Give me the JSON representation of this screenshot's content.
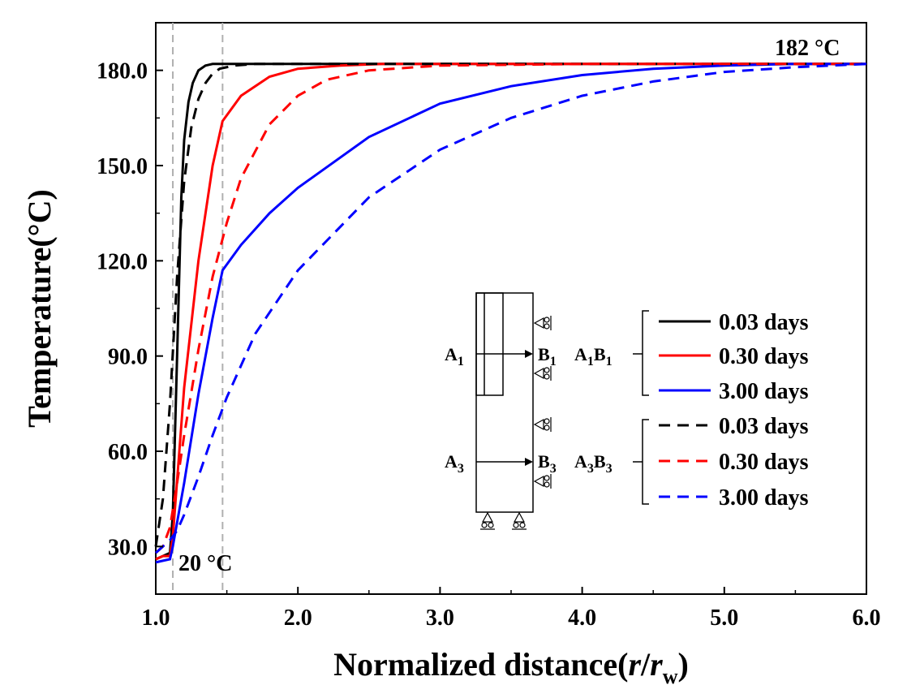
{
  "chart_data": {
    "type": "line",
    "xlabel": "Normalized distance(r/r_w)",
    "xlabel_parts": {
      "prefix": "Normalized distance(",
      "r": "r",
      "slash": "/",
      "rw": "r",
      "sub": "w",
      "suffix": ")"
    },
    "ylabel": "Temperature(°C)",
    "xlim": [
      1.0,
      6.0
    ],
    "ylim": [
      15,
      195
    ],
    "xticks": [
      1.0,
      2.0,
      3.0,
      4.0,
      5.0,
      6.0
    ],
    "xtick_labels": [
      "1.0",
      "2.0",
      "3.0",
      "4.0",
      "5.0",
      "6.0"
    ],
    "yticks": [
      30,
      60,
      90,
      120,
      150,
      180
    ],
    "ytick_labels": [
      "30.0",
      "60.0",
      "90.0",
      "120.0",
      "150.0",
      "180.0"
    ],
    "grid": false,
    "vlines": [
      1.12,
      1.47
    ],
    "annotations": [
      {
        "text": "182 °C",
        "x": 5.5,
        "y": 182
      },
      {
        "text": "20 °C",
        "x": 1.2,
        "y": 22
      }
    ],
    "series": [
      {
        "name": "0.03 days",
        "group": "A1B1",
        "color": "#000000",
        "dash": "solid",
        "x": [
          1.0,
          1.05,
          1.1,
          1.12,
          1.15,
          1.18,
          1.2,
          1.23,
          1.26,
          1.3,
          1.35,
          1.4,
          1.5,
          2.0,
          3.0,
          4.0,
          5.0,
          6.0
        ],
        "y": [
          26,
          27,
          28,
          40,
          90,
          140,
          158,
          170,
          176,
          180,
          181.5,
          182,
          182,
          182,
          182,
          182,
          182,
          182
        ]
      },
      {
        "name": "0.30 days",
        "group": "A1B1",
        "color": "#ff0000",
        "dash": "solid",
        "x": [
          1.0,
          1.05,
          1.1,
          1.12,
          1.2,
          1.3,
          1.4,
          1.47,
          1.6,
          1.8,
          2.0,
          2.3,
          2.6,
          3.0,
          4.0,
          5.0,
          6.0
        ],
        "y": [
          26,
          27,
          27,
          33,
          80,
          120,
          150,
          164,
          172,
          178,
          180.5,
          181.5,
          182,
          182,
          182,
          182,
          182
        ]
      },
      {
        "name": "3.00 days",
        "group": "A1B1",
        "color": "#0000ff",
        "dash": "solid",
        "x": [
          1.0,
          1.05,
          1.1,
          1.12,
          1.2,
          1.3,
          1.4,
          1.47,
          1.6,
          1.8,
          2.0,
          2.5,
          3.0,
          3.5,
          4.0,
          4.5,
          5.0,
          5.5,
          6.0
        ],
        "y": [
          25,
          25.5,
          26,
          30,
          50,
          78,
          102,
          117,
          125,
          135,
          143,
          159,
          169.5,
          175,
          178.5,
          180.5,
          181.5,
          182,
          182
        ]
      },
      {
        "name": "0.03 days",
        "group": "A3B3",
        "color": "#000000",
        "dash": "dashed",
        "x": [
          1.0,
          1.05,
          1.1,
          1.15,
          1.2,
          1.25,
          1.3,
          1.35,
          1.4,
          1.45,
          1.55,
          1.7,
          2.0,
          3.0,
          4.0,
          5.0,
          6.0
        ],
        "y": [
          30,
          45,
          75,
          115,
          145,
          162,
          171,
          176,
          179,
          180.5,
          181.5,
          182,
          182,
          182,
          182,
          182,
          182
        ]
      },
      {
        "name": "0.30 days",
        "group": "A3B3",
        "color": "#ff0000",
        "dash": "dashed",
        "x": [
          1.0,
          1.05,
          1.1,
          1.15,
          1.2,
          1.3,
          1.4,
          1.5,
          1.6,
          1.8,
          2.0,
          2.2,
          2.5,
          3.0,
          4.0,
          5.0,
          6.0
        ],
        "y": [
          28,
          30,
          36,
          50,
          65,
          92,
          115,
          132,
          146,
          163,
          172,
          177,
          180,
          181.5,
          182,
          182,
          182
        ]
      },
      {
        "name": "3.00 days",
        "group": "A3B3",
        "color": "#0000ff",
        "dash": "dashed",
        "x": [
          1.0,
          1.05,
          1.1,
          1.15,
          1.2,
          1.3,
          1.4,
          1.5,
          1.7,
          2.0,
          2.5,
          3.0,
          3.5,
          4.0,
          4.5,
          5.0,
          5.5,
          6.0
        ],
        "y": [
          28,
          30,
          32,
          35,
          40,
          52,
          65,
          77,
          97,
          117,
          140,
          155,
          165,
          172,
          176.5,
          179.5,
          181,
          182
        ]
      }
    ],
    "legend": {
      "placement": "right-center",
      "groups": [
        {
          "label": "A1B1",
          "entries": [
            {
              "text": "0.03 days",
              "color": "#000000",
              "dash": "solid"
            },
            {
              "text": "0.30 days",
              "color": "#ff0000",
              "dash": "solid"
            },
            {
              "text": "3.00 days",
              "color": "#0000ff",
              "dash": "solid"
            }
          ]
        },
        {
          "label": "A3B3",
          "entries": [
            {
              "text": "0.03 days",
              "color": "#000000",
              "dash": "dashed"
            },
            {
              "text": "0.30 days",
              "color": "#ff0000",
              "dash": "dashed"
            },
            {
              "text": "3.00 days",
              "color": "#0000ff",
              "dash": "dashed"
            }
          ]
        }
      ]
    },
    "inset": {
      "labels": {
        "a1": "A",
        "a1_sub": "1",
        "b1": "B",
        "b1_sub": "1",
        "a3": "A",
        "a3_sub": "3",
        "b3": "B",
        "b3_sub": "3"
      },
      "group_labels": {
        "g1": "A",
        "g1_sub1": "1",
        "g1_b": "B",
        "g1_sub2": "1",
        "g2": "A",
        "g2_sub1": "3",
        "g2_b": "B",
        "g2_sub2": "3"
      }
    }
  }
}
